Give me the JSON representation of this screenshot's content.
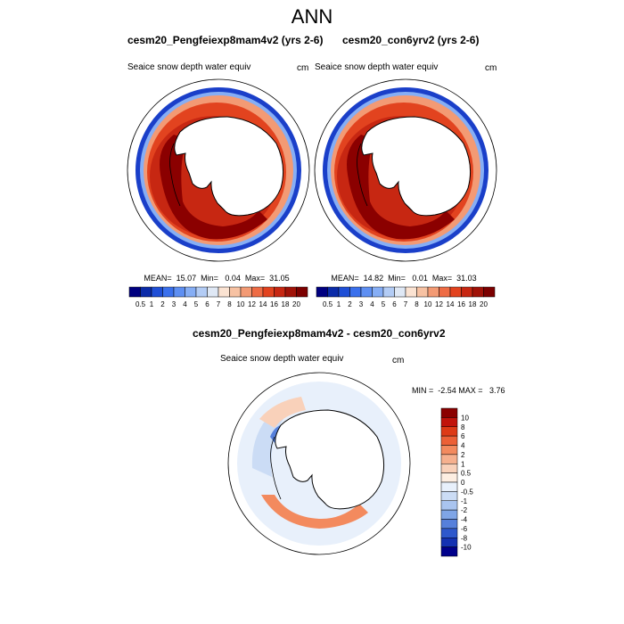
{
  "figure": {
    "title": "ANN"
  },
  "panels": [
    {
      "title": "cesm20_Pengfeiexp8mam4v2 (yrs 2-6)",
      "variable": "Seaice snow depth water equiv",
      "units": "cm",
      "stats": {
        "mean": "15.07",
        "min": "0.04",
        "max": "31.05",
        "text": "MEAN=  15.07  Min=   0.04  Max=  31.05"
      }
    },
    {
      "title": "cesm20_con6yrv2 (yrs 2-6)",
      "variable": "Seaice snow depth water equiv",
      "units": "cm",
      "stats": {
        "mean": "14.82",
        "min": "0.01",
        "max": "31.03",
        "text": "MEAN=  14.82  Min=   0.01  Max=  31.03"
      }
    },
    {
      "title": "cesm20_Pengfeiexp8mam4v2 - cesm20_con6yrv2",
      "variable": "Seaice snow depth water equiv",
      "units": "cm",
      "stats": {
        "min": "-2.54",
        "max": "3.76",
        "text": "MIN =  -2.54 MAX =   3.76"
      }
    }
  ],
  "colorbars": {
    "abs": {
      "labels": [
        "0.5",
        "1",
        "2",
        "3",
        "4",
        "5",
        "6",
        "7",
        "8",
        "10",
        "12",
        "14",
        "16",
        "18",
        "20"
      ],
      "colors": [
        "#000080",
        "#0b2ba8",
        "#1f4fd6",
        "#3a70ec",
        "#5e8ff2",
        "#86aef5",
        "#b3ccf5",
        "#dfe8f5",
        "#fbe3d2",
        "#f7c2a3",
        "#f39a74",
        "#ee6c45",
        "#e2431f",
        "#c72712",
        "#a01208",
        "#7c0000"
      ]
    },
    "diff": {
      "labels": [
        "10",
        "8",
        "6",
        "4",
        "2",
        "1",
        "0.5",
        "0",
        "-0.5",
        "-1",
        "-2",
        "-4",
        "-6",
        "-8",
        "-10"
      ],
      "colors": [
        "#8b0000",
        "#c1130b",
        "#dd3a16",
        "#ec6036",
        "#f38a5e",
        "#f6b08e",
        "#f9d1ba",
        "#fdeee2",
        "#e8f0fb",
        "#cbdcf5",
        "#a9c4ef",
        "#7fa5e6",
        "#5680db",
        "#2e58cc",
        "#1432b2",
        "#00008b"
      ]
    }
  },
  "chart_data": [
    {
      "type": "heatmap",
      "title": "cesm20_Pengfeiexp8mam4v2 (yrs 2-6)",
      "variable": "Seaice snow depth water equiv",
      "units": "cm",
      "projection": "south polar stereographic",
      "mean": 15.07,
      "min": 0.04,
      "max": 31.05,
      "levels": [
        0.5,
        1,
        2,
        3,
        4,
        5,
        6,
        7,
        8,
        10,
        12,
        14,
        16,
        18,
        20
      ]
    },
    {
      "type": "heatmap",
      "title": "cesm20_con6yrv2 (yrs 2-6)",
      "variable": "Seaice snow depth water equiv",
      "units": "cm",
      "projection": "south polar stereographic",
      "mean": 14.82,
      "min": 0.01,
      "max": 31.03,
      "levels": [
        0.5,
        1,
        2,
        3,
        4,
        5,
        6,
        7,
        8,
        10,
        12,
        14,
        16,
        18,
        20
      ]
    },
    {
      "type": "heatmap",
      "title": "cesm20_Pengfeiexp8mam4v2 - cesm20_con6yrv2",
      "variable": "Seaice snow depth water equiv",
      "units": "cm",
      "projection": "south polar stereographic",
      "min": -2.54,
      "max": 3.76,
      "levels": [
        10,
        8,
        6,
        4,
        2,
        1,
        0.5,
        0,
        -0.5,
        -1,
        -2,
        -4,
        -6,
        -8,
        -10
      ]
    }
  ]
}
